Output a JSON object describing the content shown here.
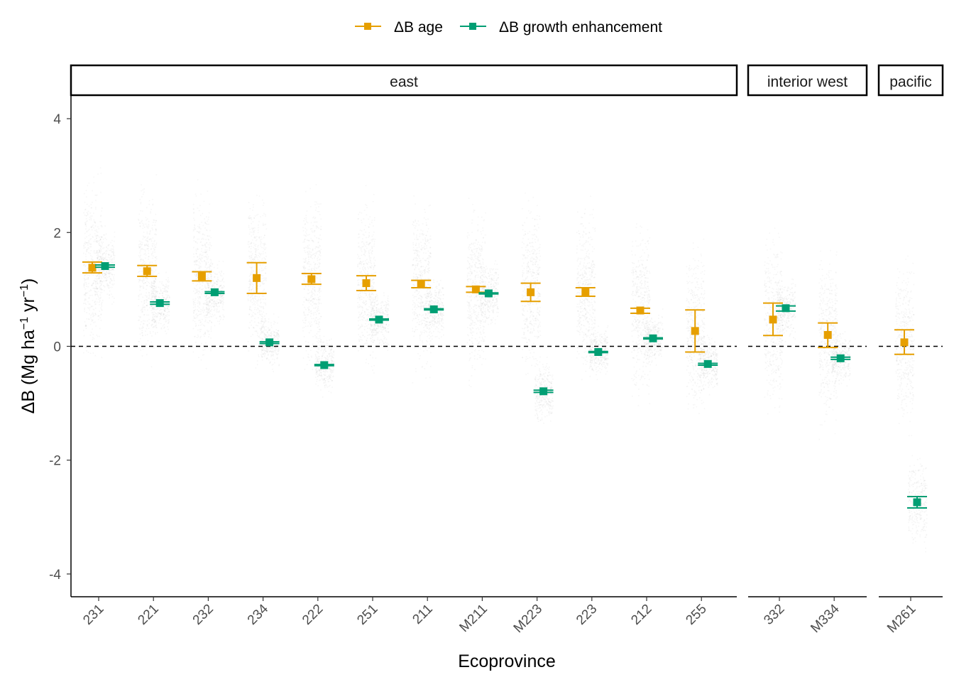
{
  "chart_data": {
    "type": "scatter",
    "xlabel": "Ecoprovince",
    "ylabel_prefix": "ΔB (Mg ha",
    "ylabel_sup1": "−1",
    "ylabel_mid": " yr",
    "ylabel_sup2": "−1",
    "ylabel_suffix": ")",
    "ylim": [
      -4.4,
      4.4
    ],
    "yticks": [
      4,
      2,
      0,
      -2,
      -4
    ],
    "ytick_labels": [
      "4",
      "2",
      "0",
      "-2",
      "-4"
    ],
    "reference_line": 0,
    "grid": false,
    "legend_position": "top",
    "series": [
      {
        "name": "ΔB age",
        "key": "age",
        "color": "#E69F00"
      },
      {
        "name": "ΔB growth enhancement",
        "key": "growth",
        "color": "#009E73"
      }
    ],
    "facets": [
      {
        "label": "east",
        "categories": [
          {
            "name": "231",
            "age": {
              "y": 1.38,
              "lo": 1.29,
              "hi": 1.48
            },
            "growth": {
              "y": 1.41,
              "lo": 1.39,
              "hi": 1.43
            }
          },
          {
            "name": "221",
            "age": {
              "y": 1.32,
              "lo": 1.23,
              "hi": 1.42
            },
            "growth": {
              "y": 0.76,
              "lo": 0.74,
              "hi": 0.78
            }
          },
          {
            "name": "232",
            "age": {
              "y": 1.23,
              "lo": 1.15,
              "hi": 1.31
            },
            "growth": {
              "y": 0.95,
              "lo": 0.93,
              "hi": 0.96
            }
          },
          {
            "name": "234",
            "age": {
              "y": 1.2,
              "lo": 0.93,
              "hi": 1.47
            },
            "growth": {
              "y": 0.07,
              "lo": 0.05,
              "hi": 0.08
            }
          },
          {
            "name": "222",
            "age": {
              "y": 1.18,
              "lo": 1.09,
              "hi": 1.28
            },
            "growth": {
              "y": -0.33,
              "lo": -0.34,
              "hi": -0.32
            }
          },
          {
            "name": "251",
            "age": {
              "y": 1.11,
              "lo": 0.98,
              "hi": 1.24
            },
            "growth": {
              "y": 0.47,
              "lo": 0.46,
              "hi": 0.48
            }
          },
          {
            "name": "211",
            "age": {
              "y": 1.1,
              "lo": 1.03,
              "hi": 1.16
            },
            "growth": {
              "y": 0.65,
              "lo": 0.64,
              "hi": 0.66
            }
          },
          {
            "name": "M211",
            "age": {
              "y": 1.0,
              "lo": 0.95,
              "hi": 1.05
            },
            "growth": {
              "y": 0.93,
              "lo": 0.92,
              "hi": 0.94
            }
          },
          {
            "name": "M223",
            "age": {
              "y": 0.95,
              "lo": 0.79,
              "hi": 1.11
            },
            "growth": {
              "y": -0.79,
              "lo": -0.81,
              "hi": -0.77
            }
          },
          {
            "name": "223",
            "age": {
              "y": 0.95,
              "lo": 0.88,
              "hi": 1.03
            },
            "growth": {
              "y": -0.1,
              "lo": -0.11,
              "hi": -0.09
            }
          },
          {
            "name": "212",
            "age": {
              "y": 0.63,
              "lo": 0.58,
              "hi": 0.67
            },
            "growth": {
              "y": 0.14,
              "lo": 0.13,
              "hi": 0.15
            }
          },
          {
            "name": "255",
            "age": {
              "y": 0.27,
              "lo": -0.1,
              "hi": 0.64
            },
            "growth": {
              "y": -0.31,
              "lo": -0.33,
              "hi": -0.3
            }
          }
        ]
      },
      {
        "label": "interior west",
        "categories": [
          {
            "name": "332",
            "age": {
              "y": 0.47,
              "lo": 0.19,
              "hi": 0.76
            },
            "growth": {
              "y": 0.67,
              "lo": 0.62,
              "hi": 0.71
            }
          },
          {
            "name": "M334",
            "age": {
              "y": 0.2,
              "lo": -0.02,
              "hi": 0.41
            },
            "growth": {
              "y": -0.21,
              "lo": -0.23,
              "hi": -0.19
            }
          }
        ]
      },
      {
        "label": "pacific",
        "categories": [
          {
            "name": "M261",
            "age": {
              "y": 0.07,
              "lo": -0.14,
              "hi": 0.29
            },
            "growth": {
              "y": -2.74,
              "lo": -2.84,
              "hi": -2.64
            }
          }
        ]
      }
    ]
  }
}
